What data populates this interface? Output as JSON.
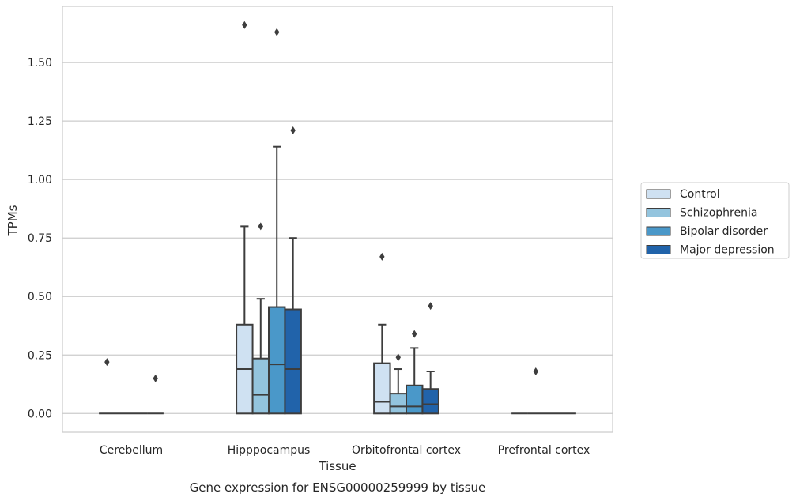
{
  "chart_data": {
    "type": "box",
    "title": "Gene expression for ENSG00000259999 by tissue",
    "xlabel": "Tissue",
    "ylabel": "TPMs",
    "categories": [
      "Cerebellum",
      "Hipppocampus",
      "Orbitofrontal cortex",
      "Prefrontal cortex"
    ],
    "ylim": [
      -0.08,
      1.74
    ],
    "yticks": [
      0.0,
      0.25,
      0.5,
      0.75,
      1.0,
      1.25,
      1.5
    ],
    "ytick_labels": [
      "0.00",
      "0.25",
      "0.50",
      "0.75",
      "1.00",
      "1.25",
      "1.50"
    ],
    "grid": "horizontal",
    "legend_position": "right",
    "series": [
      {
        "name": "Control",
        "color": "#cfe1f2",
        "boxes": [
          {
            "min": 0,
            "q1": 0,
            "median": 0,
            "q3": 0,
            "max": 0,
            "outliers": [
              0.22
            ]
          },
          {
            "min": 0,
            "q1": 0,
            "median": 0.19,
            "q3": 0.38,
            "max": 0.8,
            "outliers": [
              1.66
            ]
          },
          {
            "min": 0,
            "q1": 0,
            "median": 0.05,
            "q3": 0.215,
            "max": 0.38,
            "outliers": [
              0.67
            ]
          },
          {
            "min": 0,
            "q1": 0,
            "median": 0,
            "q3": 0,
            "max": 0,
            "outliers": []
          }
        ]
      },
      {
        "name": "Schizophrenia",
        "color": "#93c4de",
        "boxes": [
          {
            "min": 0,
            "q1": 0,
            "median": 0,
            "q3": 0,
            "max": 0,
            "outliers": []
          },
          {
            "min": 0,
            "q1": 0,
            "median": 0.08,
            "q3": 0.235,
            "max": 0.49,
            "outliers": [
              0.8
            ]
          },
          {
            "min": 0,
            "q1": 0,
            "median": 0.03,
            "q3": 0.085,
            "max": 0.19,
            "outliers": [
              0.24
            ]
          },
          {
            "min": 0,
            "q1": 0,
            "median": 0,
            "q3": 0,
            "max": 0,
            "outliers": [
              0.18
            ]
          }
        ]
      },
      {
        "name": "Bipolar disorder",
        "color": "#4a98c9",
        "boxes": [
          {
            "min": 0,
            "q1": 0,
            "median": 0,
            "q3": 0,
            "max": 0,
            "outliers": []
          },
          {
            "min": 0,
            "q1": 0,
            "median": 0.21,
            "q3": 0.455,
            "max": 1.14,
            "outliers": [
              1.63
            ]
          },
          {
            "min": 0,
            "q1": 0,
            "median": 0.03,
            "q3": 0.12,
            "max": 0.28,
            "outliers": [
              0.34
            ]
          },
          {
            "min": 0,
            "q1": 0,
            "median": 0,
            "q3": 0,
            "max": 0,
            "outliers": []
          }
        ]
      },
      {
        "name": "Major depression",
        "color": "#2163aa",
        "boxes": [
          {
            "min": 0,
            "q1": 0,
            "median": 0,
            "q3": 0,
            "max": 0,
            "outliers": [
              0.15
            ]
          },
          {
            "min": 0,
            "q1": 0,
            "median": 0.19,
            "q3": 0.445,
            "max": 0.75,
            "outliers": [
              1.21
            ]
          },
          {
            "min": 0,
            "q1": 0,
            "median": 0.04,
            "q3": 0.105,
            "max": 0.18,
            "outliers": [
              0.46
            ]
          },
          {
            "min": 0,
            "q1": 0,
            "median": 0,
            "q3": 0,
            "max": 0,
            "outliers": []
          }
        ]
      }
    ]
  }
}
